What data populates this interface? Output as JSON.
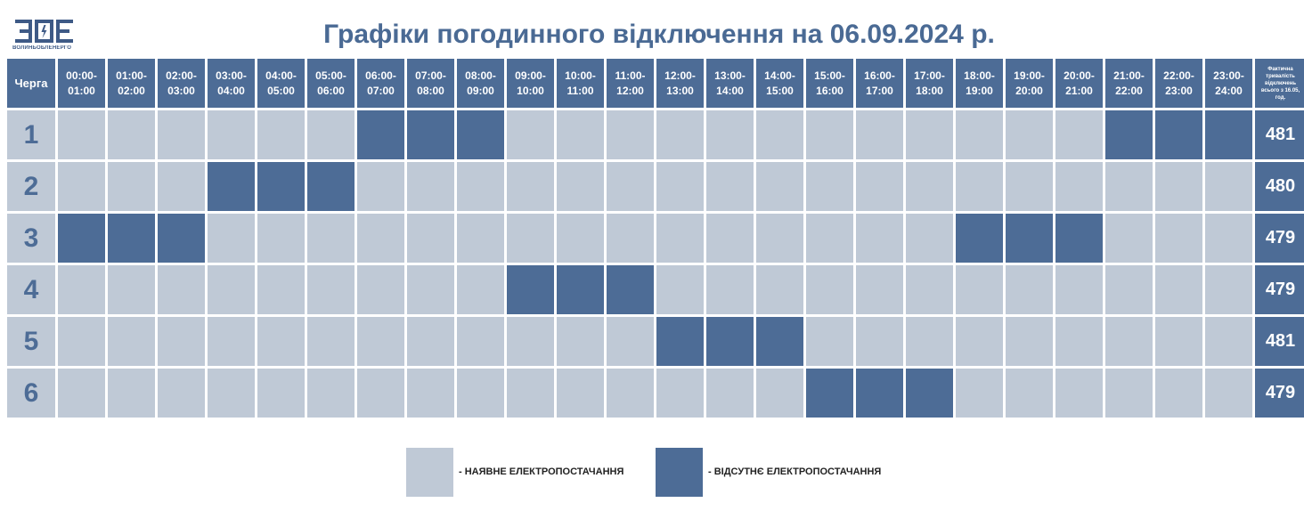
{
  "logo": {
    "text": "ВОЛИНЬОБЛЕНЕРГО",
    "brand_color": "#3e5a86"
  },
  "title": "Графіки погодинного відключення на 06.09.2024 р.",
  "table": {
    "queue_header": "Черга",
    "hours": [
      "00:00-\n01:00",
      "01:00-\n02:00",
      "02:00-\n03:00",
      "03:00-\n04:00",
      "04:00-\n05:00",
      "05:00-\n06:00",
      "06:00-\n07:00",
      "07:00-\n08:00",
      "08:00-\n09:00",
      "09:00-\n10:00",
      "10:00-\n11:00",
      "11:00-\n12:00",
      "12:00-\n13:00",
      "13:00-\n14:00",
      "14:00-\n15:00",
      "15:00-\n16:00",
      "16:00-\n17:00",
      "17:00-\n18:00",
      "18:00-\n19:00",
      "19:00-\n20:00",
      "20:00-\n21:00",
      "21:00-\n22:00",
      "22:00-\n23:00",
      "23:00-\n24:00"
    ],
    "total_header": "Фактична тривалість відключень всього з 16.05, год.",
    "rows": [
      {
        "queue": "1",
        "off_hours": [
          6,
          7,
          8,
          21,
          22,
          23
        ],
        "total": "481"
      },
      {
        "queue": "2",
        "off_hours": [
          3,
          4,
          5
        ],
        "total": "480"
      },
      {
        "queue": "3",
        "off_hours": [
          0,
          1,
          2,
          18,
          19,
          20
        ],
        "total": "479"
      },
      {
        "queue": "4",
        "off_hours": [
          9,
          10,
          11
        ],
        "total": "479"
      },
      {
        "queue": "5",
        "off_hours": [
          12,
          13,
          14
        ],
        "total": "481"
      },
      {
        "queue": "6",
        "off_hours": [
          15,
          16,
          17
        ],
        "total": "479"
      }
    ]
  },
  "colors": {
    "power_on": "#bfc9d6",
    "power_off": "#4d6c96",
    "header": "#4d6c96"
  },
  "legend": {
    "on_label": "- НАЯВНЕ ЕЛЕКТРОПОСТАЧАННЯ",
    "off_label": "- ВІДСУТНЄ ЕЛЕКТРОПОСТАЧАННЯ"
  }
}
